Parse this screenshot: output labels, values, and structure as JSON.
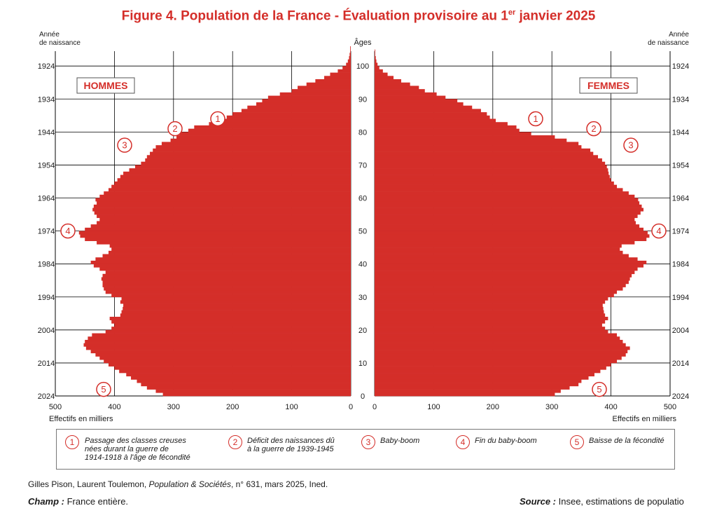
{
  "title": {
    "main": "Figure 4. Population de la France - Évaluation provisoire au 1",
    "sup": "er",
    "rest": " janvier 2025"
  },
  "chart_data": {
    "type": "population-pyramid",
    "title": "Figure 4. Population de la France - Évaluation provisoire au 1er janvier 2025",
    "xlabel": "Effectifs en milliers",
    "ylabel_age": "Âges",
    "ylabel_year": "Année de naissance",
    "xlim": [
      0,
      500
    ],
    "x_ticks": [
      500,
      400,
      300,
      200,
      100,
      0
    ],
    "age_ticks": [
      0,
      10,
      20,
      30,
      40,
      50,
      60,
      70,
      80,
      90,
      100
    ],
    "year_ticks": [
      "2024",
      "2014",
      "2004",
      "1994",
      "1984",
      "1974",
      "1964",
      "1954",
      "1944",
      "1934",
      "1924"
    ],
    "men_label": "HOMMES",
    "women_label": "FEMMES",
    "ages": [
      0,
      1,
      2,
      3,
      4,
      5,
      6,
      7,
      8,
      9,
      10,
      11,
      12,
      13,
      14,
      15,
      16,
      17,
      18,
      19,
      20,
      21,
      22,
      23,
      24,
      25,
      26,
      27,
      28,
      29,
      30,
      31,
      32,
      33,
      34,
      35,
      36,
      37,
      38,
      39,
      40,
      41,
      42,
      43,
      44,
      45,
      46,
      47,
      48,
      49,
      50,
      51,
      52,
      53,
      54,
      55,
      56,
      57,
      58,
      59,
      60,
      61,
      62,
      63,
      64,
      65,
      66,
      67,
      68,
      69,
      70,
      71,
      72,
      73,
      74,
      75,
      76,
      77,
      78,
      79,
      80,
      81,
      82,
      83,
      84,
      85,
      86,
      87,
      88,
      89,
      90,
      91,
      92,
      93,
      94,
      95,
      96,
      97,
      98,
      99,
      100,
      101,
      102,
      103,
      104,
      105
    ],
    "series": [
      {
        "name": "Hommes",
        "values": [
          318,
          330,
          345,
          355,
          362,
          372,
          380,
          392,
          400,
          410,
          418,
          425,
          432,
          440,
          448,
          452,
          450,
          445,
          438,
          415,
          405,
          400,
          405,
          408,
          390,
          388,
          386,
          385,
          390,
          388,
          405,
          415,
          418,
          420,
          420,
          422,
          420,
          415,
          425,
          435,
          440,
          432,
          420,
          410,
          405,
          408,
          430,
          450,
          458,
          460,
          450,
          440,
          430,
          425,
          430,
          434,
          437,
          435,
          430,
          432,
          425,
          418,
          410,
          405,
          400,
          395,
          390,
          385,
          375,
          365,
          355,
          348,
          345,
          340,
          335,
          330,
          320,
          305,
          295,
          290,
          275,
          265,
          240,
          232,
          210,
          200,
          185,
          175,
          160,
          150,
          140,
          120,
          100,
          90,
          75,
          60,
          45,
          35,
          22,
          14,
          8,
          5,
          3,
          2,
          1,
          1
        ]
      },
      {
        "name": "Femmes",
        "values": [
          305,
          315,
          330,
          345,
          350,
          362,
          372,
          382,
          392,
          400,
          410,
          418,
          425,
          428,
          432,
          425,
          420,
          415,
          410,
          395,
          390,
          385,
          390,
          395,
          390,
          388,
          387,
          386,
          390,
          395,
          405,
          410,
          420,
          425,
          430,
          432,
          435,
          440,
          445,
          455,
          460,
          445,
          430,
          420,
          415,
          418,
          440,
          460,
          465,
          462,
          455,
          448,
          442,
          440,
          445,
          450,
          455,
          452,
          448,
          446,
          440,
          430,
          420,
          410,
          405,
          400,
          398,
          396,
          395,
          393,
          390,
          385,
          378,
          370,
          365,
          350,
          345,
          325,
          305,
          265,
          245,
          240,
          225,
          205,
          195,
          190,
          180,
          165,
          150,
          140,
          120,
          105,
          85,
          75,
          60,
          45,
          32,
          22,
          14,
          8,
          5,
          3,
          2,
          1,
          1,
          0
        ]
      }
    ],
    "annotations_left": [
      {
        "label": "1",
        "age": 84
      },
      {
        "label": "2",
        "age": 81
      },
      {
        "label": "3",
        "age": 76
      },
      {
        "label": "4",
        "age": 50
      },
      {
        "label": "5",
        "age": 2
      }
    ],
    "annotations_right": [
      {
        "label": "1",
        "age": 84
      },
      {
        "label": "2",
        "age": 81
      },
      {
        "label": "3",
        "age": 76
      },
      {
        "label": "4",
        "age": 50
      },
      {
        "label": "5",
        "age": 2
      }
    ]
  },
  "axis_labels": {
    "annee_top": "Année",
    "annee_bottom": "de naissance",
    "ages": "Âges",
    "effectifs": "Effectifs en milliers"
  },
  "legend": [
    {
      "num": "1",
      "lines": [
        "Passage des classes creuses",
        "nées durant la guerre de",
        "1914-1918 à l'âge de fécondité"
      ]
    },
    {
      "num": "2",
      "lines": [
        "Déficit des naissances dû",
        "à la guerre de 1939-1945"
      ]
    },
    {
      "num": "3",
      "lines": [
        "Baby-boom"
      ]
    },
    {
      "num": "4",
      "lines": [
        "Fin du baby-boom"
      ]
    },
    {
      "num": "5",
      "lines": [
        "Baisse de la fécondité"
      ]
    }
  ],
  "footer": {
    "authors": "Gilles Pison, Laurent Toulemon, ",
    "journal": "Population & Sociétés",
    "issue": ", n° 631, mars 2025, Ined.",
    "champ_label": "Champ :",
    "champ_text": " France entière.",
    "source_label": "Source :",
    "source_text": " Insee, estimations de populatio"
  },
  "colors": {
    "bar": "#d42e29",
    "accent": "#d42e29",
    "grid": "#000000"
  }
}
